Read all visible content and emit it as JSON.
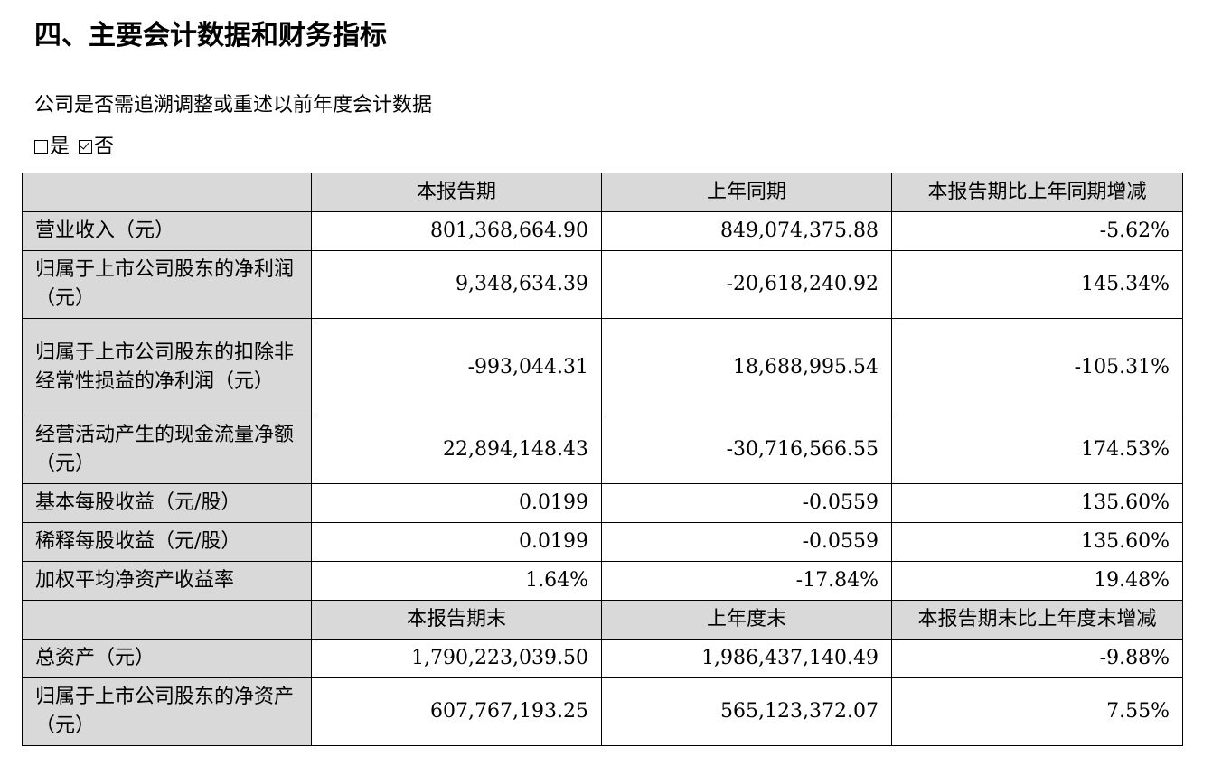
{
  "section_title": "四、主要会计数据和财务指标",
  "restatement_question": "公司是否需追溯调整或重述以前年度会计数据",
  "answer": {
    "yes_label": "是",
    "no_label": "否",
    "yes_checked": false,
    "no_checked": true
  },
  "table": {
    "header_period": [
      "本报告期",
      "上年同期",
      "本报告期比上年同期增减"
    ],
    "period_rows": [
      {
        "label": "营业收入（元）",
        "current": "801,368,664.90",
        "prior": "849,074,375.88",
        "change": "-5.62%"
      },
      {
        "label": "归属于上市公司股东的净利润（元）",
        "current": "9,348,634.39",
        "prior": "-20,618,240.92",
        "change": "145.34%"
      },
      {
        "label": "归属于上市公司股东的扣除非经常性损益的净利润（元）",
        "current": "-993,044.31",
        "prior": "18,688,995.54",
        "change": "-105.31%"
      },
      {
        "label": "经营活动产生的现金流量净额（元）",
        "current": "22,894,148.43",
        "prior": "-30,716,566.55",
        "change": "174.53%"
      },
      {
        "label": "基本每股收益（元/股）",
        "current": "0.0199",
        "prior": "-0.0559",
        "change": "135.60%"
      },
      {
        "label": "稀释每股收益（元/股）",
        "current": "0.0199",
        "prior": "-0.0559",
        "change": "135.60%"
      },
      {
        "label": "加权平均净资产收益率",
        "current": "1.64%",
        "prior": "-17.84%",
        "change": "19.48%"
      }
    ],
    "header_balance": [
      "本报告期末",
      "上年度末",
      "本报告期末比上年度末增减"
    ],
    "balance_rows": [
      {
        "label": "总资产（元）",
        "current": "1,790,223,039.50",
        "prior": "1,986,437,140.49",
        "change": "-9.88%"
      },
      {
        "label": "归属于上市公司股东的净资产（元）",
        "current": "607,767,193.25",
        "prior": "565,123,372.07",
        "change": "7.55%"
      }
    ]
  }
}
